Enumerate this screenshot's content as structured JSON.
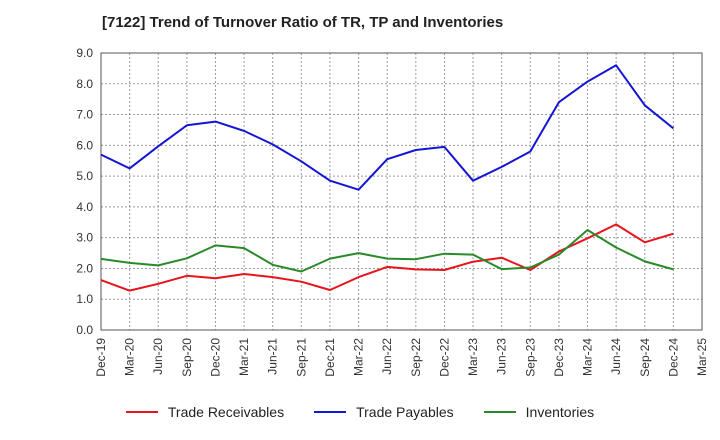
{
  "title": "[7122]  Trend of Turnover Ratio of TR, TP and Inventories",
  "chart_data": {
    "type": "line",
    "title": "[7122]  Trend of Turnover Ratio of TR, TP and Inventories",
    "xlabel": "",
    "ylabel": "",
    "ylim": [
      0,
      9
    ],
    "y_ticks": [
      "0.0",
      "1.0",
      "2.0",
      "3.0",
      "4.0",
      "5.0",
      "6.0",
      "7.0",
      "8.0",
      "9.0"
    ],
    "grid": true,
    "legend_position": "bottom",
    "categories": [
      "Dec-19",
      "Mar-20",
      "Jun-20",
      "Sep-20",
      "Dec-20",
      "Mar-21",
      "Jun-21",
      "Sep-21",
      "Dec-21",
      "Mar-22",
      "Jun-22",
      "Sep-22",
      "Dec-22",
      "Mar-23",
      "Jun-23",
      "Sep-23",
      "Dec-23",
      "Mar-24",
      "Jun-24",
      "Sep-24",
      "Dec-24",
      "Mar-25"
    ],
    "series": [
      {
        "name": "Trade Receivables",
        "color": "#e8141c",
        "values": [
          1.62,
          1.28,
          1.5,
          1.76,
          1.68,
          1.82,
          1.72,
          1.57,
          1.3,
          1.72,
          2.05,
          1.97,
          1.95,
          2.22,
          2.35,
          1.95,
          2.55,
          2.98,
          3.43,
          2.85,
          3.13,
          null
        ]
      },
      {
        "name": "Trade Payables",
        "color": "#1515d4",
        "values": [
          5.7,
          5.25,
          5.97,
          6.65,
          6.77,
          6.47,
          6.03,
          5.48,
          4.85,
          4.56,
          5.55,
          5.85,
          5.95,
          4.85,
          5.3,
          5.8,
          7.4,
          8.07,
          8.6,
          7.3,
          6.55,
          null
        ]
      },
      {
        "name": "Inventories",
        "color": "#2a8a2a",
        "values": [
          2.31,
          2.18,
          2.1,
          2.33,
          2.75,
          2.66,
          2.12,
          1.9,
          2.32,
          2.5,
          2.32,
          2.3,
          2.48,
          2.45,
          1.98,
          2.03,
          2.45,
          3.25,
          2.68,
          2.23,
          1.97,
          null
        ]
      }
    ]
  },
  "legend": {
    "items": [
      {
        "label": "Trade Receivables",
        "color": "#e8141c"
      },
      {
        "label": "Trade Payables",
        "color": "#1515d4"
      },
      {
        "label": "Inventories",
        "color": "#2a8a2a"
      }
    ]
  }
}
